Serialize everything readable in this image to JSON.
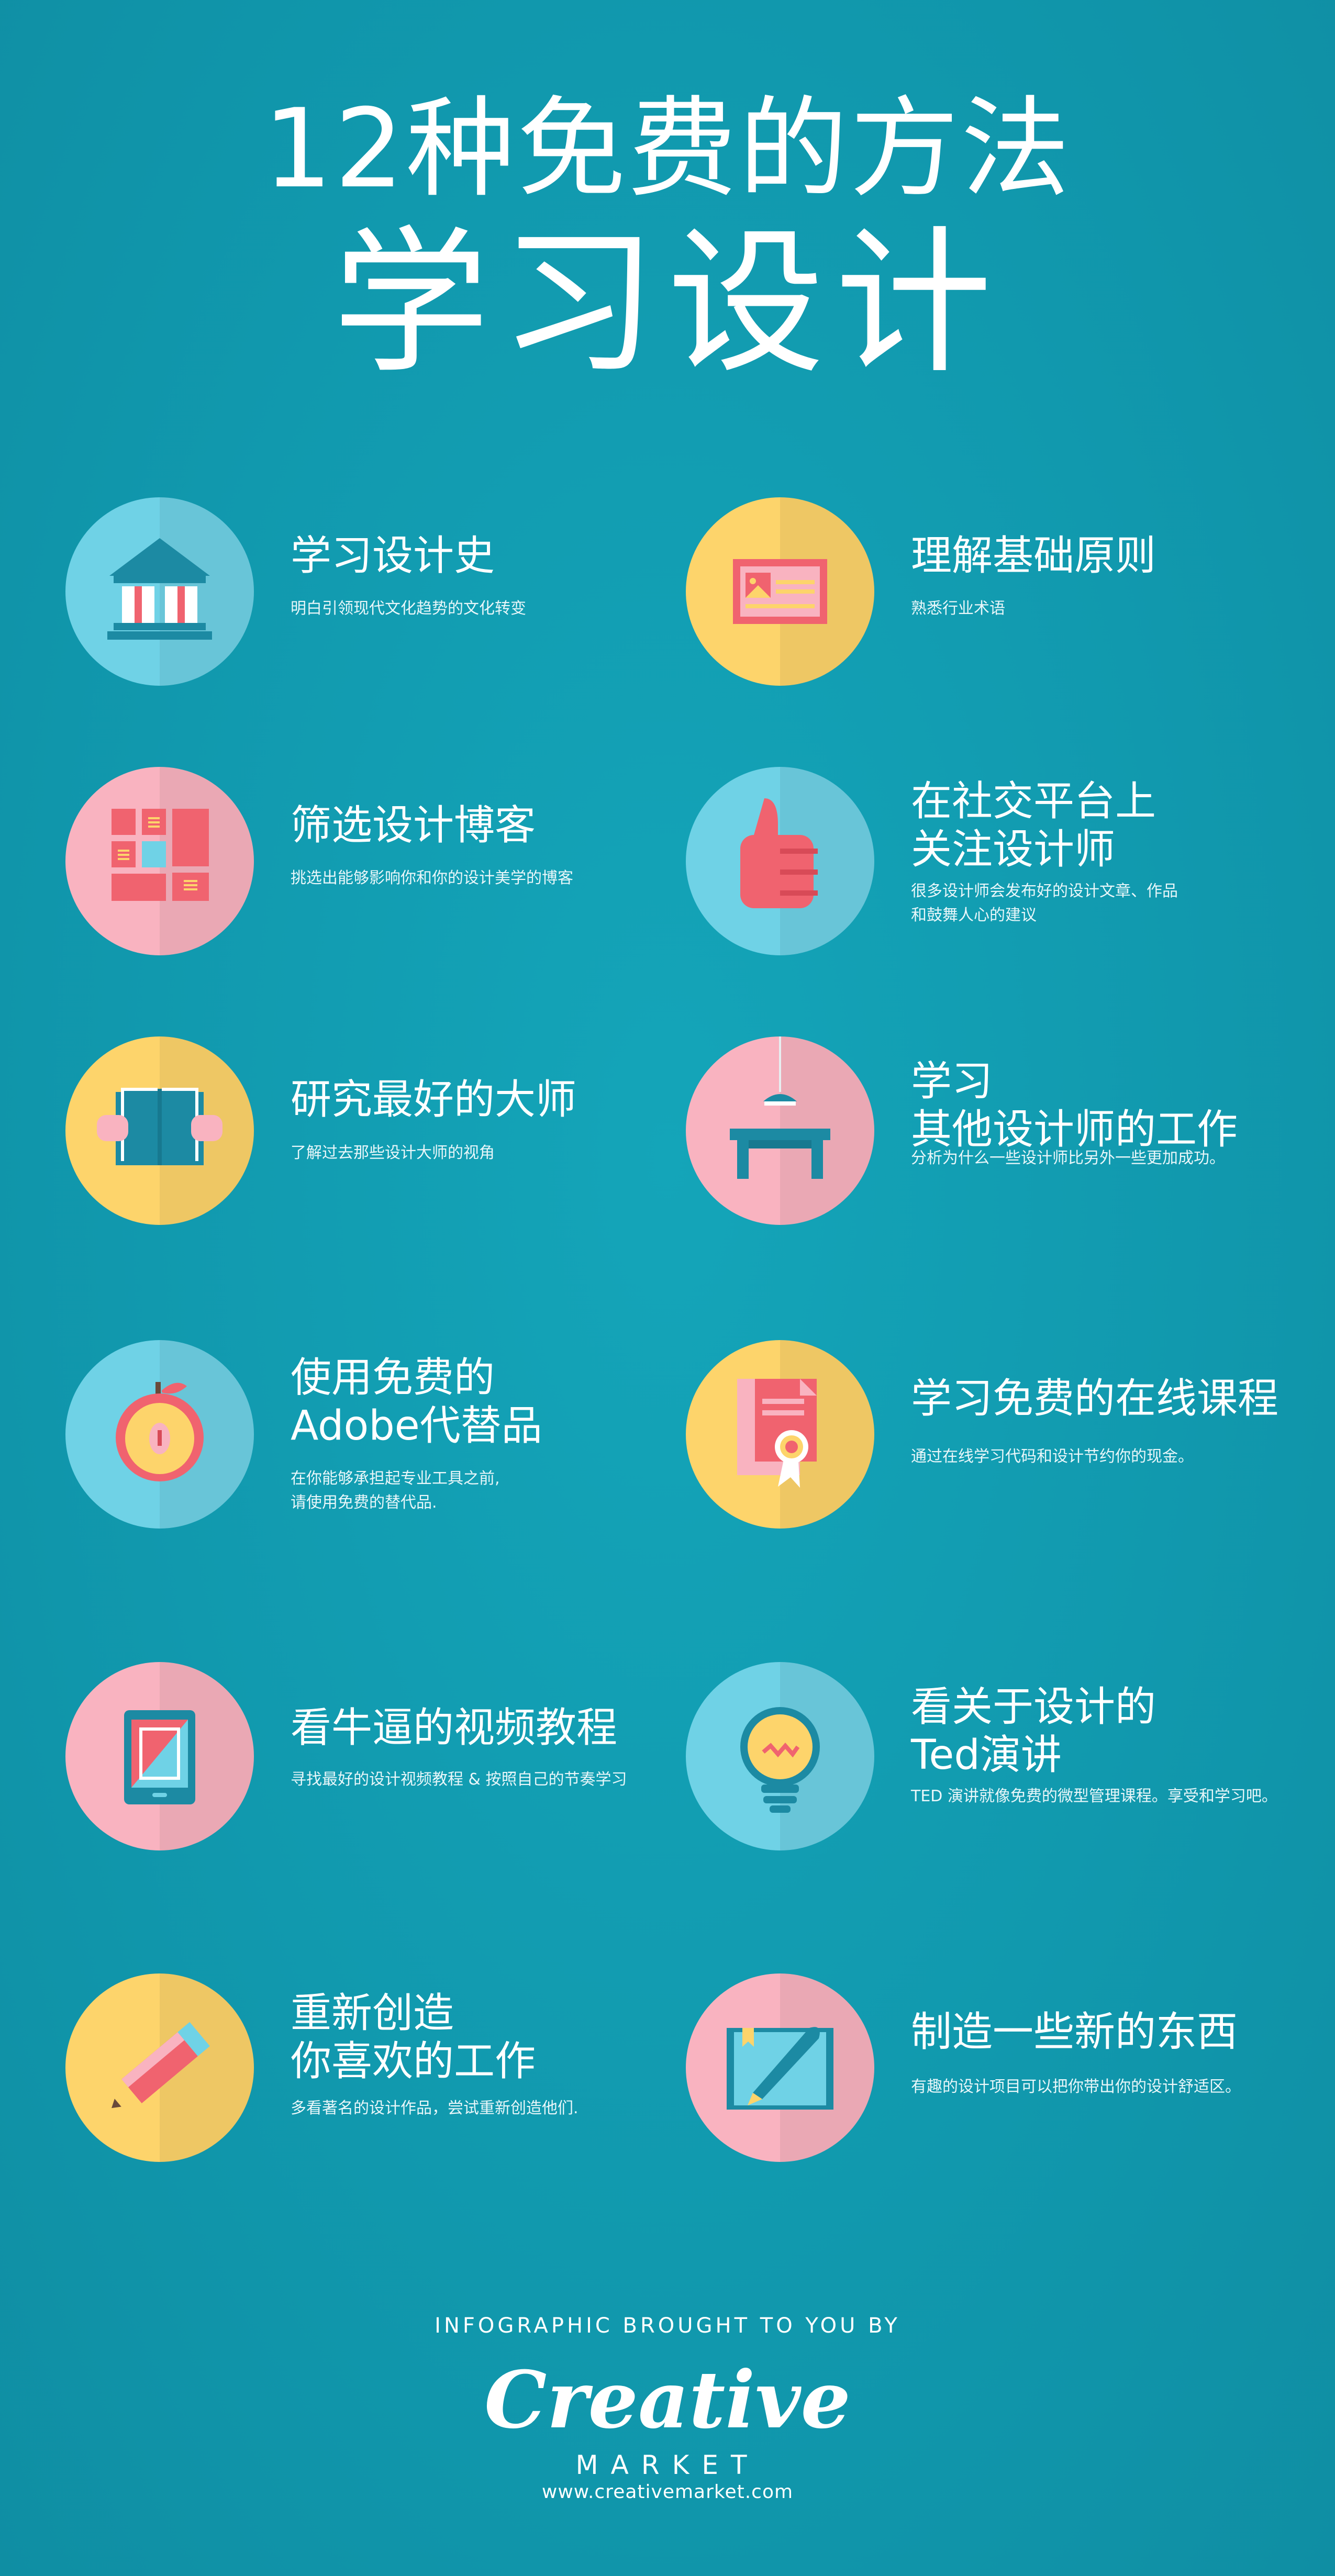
{
  "header": {
    "line1": "12种免费的方法",
    "line2": "学习设计"
  },
  "items": [
    {
      "title": "学习设计史",
      "desc": "明白引领现代文化趋势的文化转变",
      "icon": "building-icon",
      "color": "#6fd2e6"
    },
    {
      "title": "理解基础原则",
      "desc": "熟悉行业术语",
      "icon": "card-icon",
      "color": "#fdd46b"
    },
    {
      "title": "筛选设计博客",
      "desc": "挑选出能够影响你和你的设计美学的博客",
      "icon": "grid-layout-icon",
      "color": "#f9b3c0"
    },
    {
      "title": "在社交平台上\n关注设计师",
      "desc": "很多设计师会发布好的设计文章、作品\n和鼓舞人心的建议",
      "icon": "thumbs-up-icon",
      "color": "#6fd2e6"
    },
    {
      "title": "研究最好的大师",
      "desc": "了解过去那些设计大师的视角",
      "icon": "book-icon",
      "color": "#fdd46b"
    },
    {
      "title": "学习\n其他设计师的工作",
      "desc": "分析为什么一些设计师比另外一些更加成功。",
      "icon": "desk-lamp-icon",
      "color": "#f9b3c0"
    },
    {
      "title": "使用免费的\nAdobe代替品",
      "desc": "在你能够承担起专业工具之前,\n请使用免费的替代品.",
      "icon": "apple-icon",
      "color": "#6fd2e6"
    },
    {
      "title": "学习免费的在线课程",
      "desc": "通过在线学习代码和设计节约你的现金。",
      "icon": "certificate-icon",
      "color": "#fdd46b"
    },
    {
      "title": "看牛逼的视频教程",
      "desc": "寻找最好的设计视频教程 & 按照自己的节奏学习",
      "icon": "tablet-icon",
      "color": "#f9b3c0"
    },
    {
      "title": "看关于设计的\nTed演讲",
      "desc": "TED 演讲就像免费的微型管理课程。享受和学习吧。",
      "icon": "lightbulb-icon",
      "color": "#6fd2e6"
    },
    {
      "title": "重新创造\n你喜欢的工作",
      "desc": "多看著名的设计作品，尝试重新创造他们.",
      "icon": "pencil-icon",
      "color": "#fdd46b"
    },
    {
      "title": "制造一些新的东西",
      "desc": "有趣的设计项目可以把你带出你的设计舒适区。",
      "icon": "pen-book-icon",
      "color": "#f9b3c0"
    }
  ],
  "footer": {
    "brought_by": "INFOGRAPHIC BROUGHT TO YOU BY",
    "logo": "Creative",
    "market": "MARKET",
    "url": "www.creativemarket.com"
  }
}
